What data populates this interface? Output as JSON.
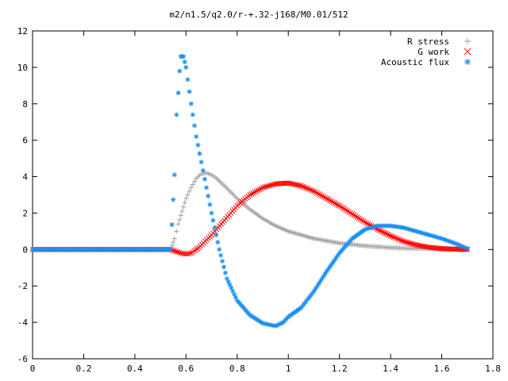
{
  "chart_data": {
    "type": "scatter",
    "title": "m2/n1.5/q2.0/r-+.32-j168/M0.01/512",
    "xlabel": "",
    "ylabel": "",
    "xlim": [
      0,
      1.8
    ],
    "ylim": [
      -6,
      12
    ],
    "xticks": [
      "0",
      "0.2",
      "0.4",
      "0.6",
      "0.8",
      "1",
      "1.2",
      "1.4",
      "1.6",
      "1.8"
    ],
    "yticks": [
      "-6",
      "-4",
      "-2",
      "0",
      "2",
      "4",
      "6",
      "8",
      "10",
      "12"
    ],
    "grid": false,
    "legend_position": "top-right",
    "series": [
      {
        "name": "R stress",
        "marker": "plus",
        "color": "#a0a0a0",
        "x": [
          0.0,
          0.2,
          0.4,
          0.54,
          0.555,
          0.57,
          0.585,
          0.6,
          0.62,
          0.64,
          0.66,
          0.68,
          0.7,
          0.72,
          0.75,
          0.8,
          0.85,
          0.9,
          0.95,
          1.0,
          1.1,
          1.2,
          1.3,
          1.4,
          1.5,
          1.6,
          1.7
        ],
        "y": [
          0,
          0,
          0,
          0,
          0.6,
          1.4,
          2.1,
          2.8,
          3.4,
          3.9,
          4.15,
          4.2,
          4.1,
          3.9,
          3.5,
          2.8,
          2.2,
          1.7,
          1.3,
          1.0,
          0.6,
          0.35,
          0.2,
          0.1,
          0.05,
          0.02,
          0
        ]
      },
      {
        "name": "G work",
        "marker": "cross",
        "color": "#ff0000",
        "x": [
          0.0,
          0.2,
          0.4,
          0.54,
          0.56,
          0.58,
          0.6,
          0.62,
          0.65,
          0.7,
          0.75,
          0.8,
          0.85,
          0.9,
          0.95,
          1.0,
          1.05,
          1.1,
          1.15,
          1.2,
          1.25,
          1.3,
          1.35,
          1.4,
          1.45,
          1.5,
          1.55,
          1.6,
          1.65,
          1.7
        ],
        "y": [
          0,
          0,
          0,
          0,
          -0.1,
          -0.2,
          -0.25,
          -0.2,
          0.1,
          0.8,
          1.6,
          2.4,
          3.0,
          3.4,
          3.6,
          3.65,
          3.5,
          3.2,
          2.8,
          2.4,
          1.95,
          1.5,
          1.1,
          0.75,
          0.45,
          0.25,
          0.12,
          0.05,
          0.02,
          0
        ]
      },
      {
        "name": "Acoustic flux",
        "marker": "star",
        "color": "#1a8ff0",
        "x": [
          0.0,
          0.2,
          0.4,
          0.54,
          0.555,
          0.563,
          0.57,
          0.575,
          0.58,
          0.59,
          0.6,
          0.62,
          0.64,
          0.66,
          0.68,
          0.7,
          0.73,
          0.76,
          0.8,
          0.85,
          0.9,
          0.95,
          0.98,
          1.0,
          1.02,
          1.05,
          1.1,
          1.15,
          1.2,
          1.25,
          1.3,
          1.35,
          1.4,
          1.45,
          1.5,
          1.55,
          1.6,
          1.65,
          1.7
        ],
        "y": [
          0,
          0,
          0,
          0,
          4.1,
          7.4,
          8.6,
          9.8,
          10.6,
          10.6,
          10.0,
          8.0,
          6.2,
          4.8,
          3.4,
          2.0,
          0.0,
          -1.6,
          -2.8,
          -3.6,
          -4.05,
          -4.2,
          -4.0,
          -3.7,
          -3.5,
          -3.2,
          -2.3,
          -1.2,
          -0.2,
          0.6,
          1.1,
          1.3,
          1.3,
          1.2,
          1.0,
          0.8,
          0.6,
          0.35,
          0.05
        ]
      }
    ]
  }
}
